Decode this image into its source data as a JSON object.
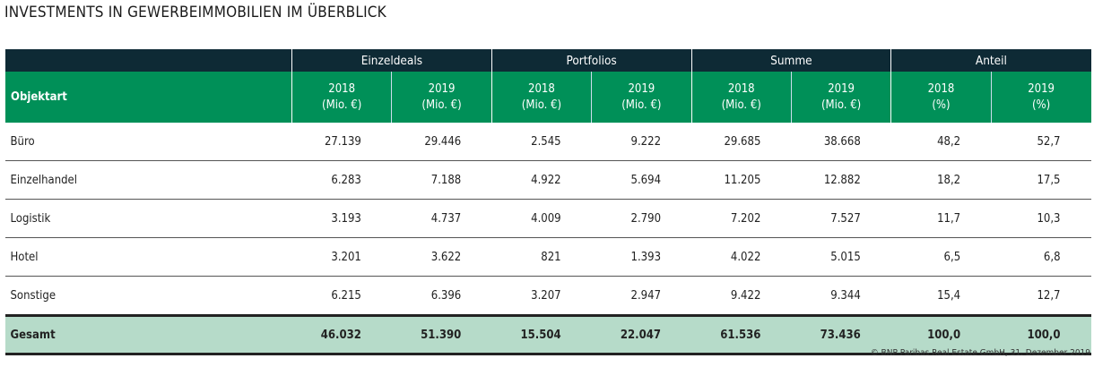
{
  "title": "INVESTMENTS IN GEWERBEIMMOBILIEN IM ÜBERBLICK",
  "groups": [
    "Einzeldeals",
    "Portfolios",
    "Summe",
    "Anteil"
  ],
  "row_header": "Objektart",
  "subheaders": [
    {
      "year": "2018",
      "unit": "(Mio. €)"
    },
    {
      "year": "2019",
      "unit": "(Mio. €)"
    },
    {
      "year": "2018",
      "unit": "(Mio. €)"
    },
    {
      "year": "2019",
      "unit": "(Mio. €)"
    },
    {
      "year": "2018",
      "unit": "(Mio. €)"
    },
    {
      "year": "2019",
      "unit": "(Mio. €)"
    },
    {
      "year": "2018",
      "unit": "(%)"
    },
    {
      "year": "2019",
      "unit": "(%)"
    }
  ],
  "rows": [
    {
      "label": "Büro",
      "values": [
        "27.139",
        "29.446",
        "2.545",
        "9.222",
        "29.685",
        "38.668",
        "48,2",
        "52,7"
      ]
    },
    {
      "label": "Einzelhandel",
      "values": [
        "6.283",
        "7.188",
        "4.922",
        "5.694",
        "11.205",
        "12.882",
        "18,2",
        "17,5"
      ]
    },
    {
      "label": "Logistik",
      "values": [
        "3.193",
        "4.737",
        "4.009",
        "2.790",
        "7.202",
        "7.527",
        "11,7",
        "10,3"
      ]
    },
    {
      "label": "Hotel",
      "values": [
        "3.201",
        "3.622",
        "821",
        "1.393",
        "4.022",
        "5.015",
        "6,5",
        "6,8"
      ]
    },
    {
      "label": "Sonstige",
      "values": [
        "6.215",
        "6.396",
        "3.207",
        "2.947",
        "9.422",
        "9.344",
        "15,4",
        "12,7"
      ]
    }
  ],
  "total": {
    "label": "Gesamt",
    "values": [
      "46.032",
      "51.390",
      "15.504",
      "22.047",
      "61.536",
      "73.436",
      "100,0",
      "100,0"
    ]
  },
  "footer": "© BNP Paribas Real Estate GmbH, 31. Dezember 2019",
  "colors": {
    "header_dark": "#0e2a35",
    "header_green": "#009058",
    "total_bg": "#b6dbc9"
  }
}
